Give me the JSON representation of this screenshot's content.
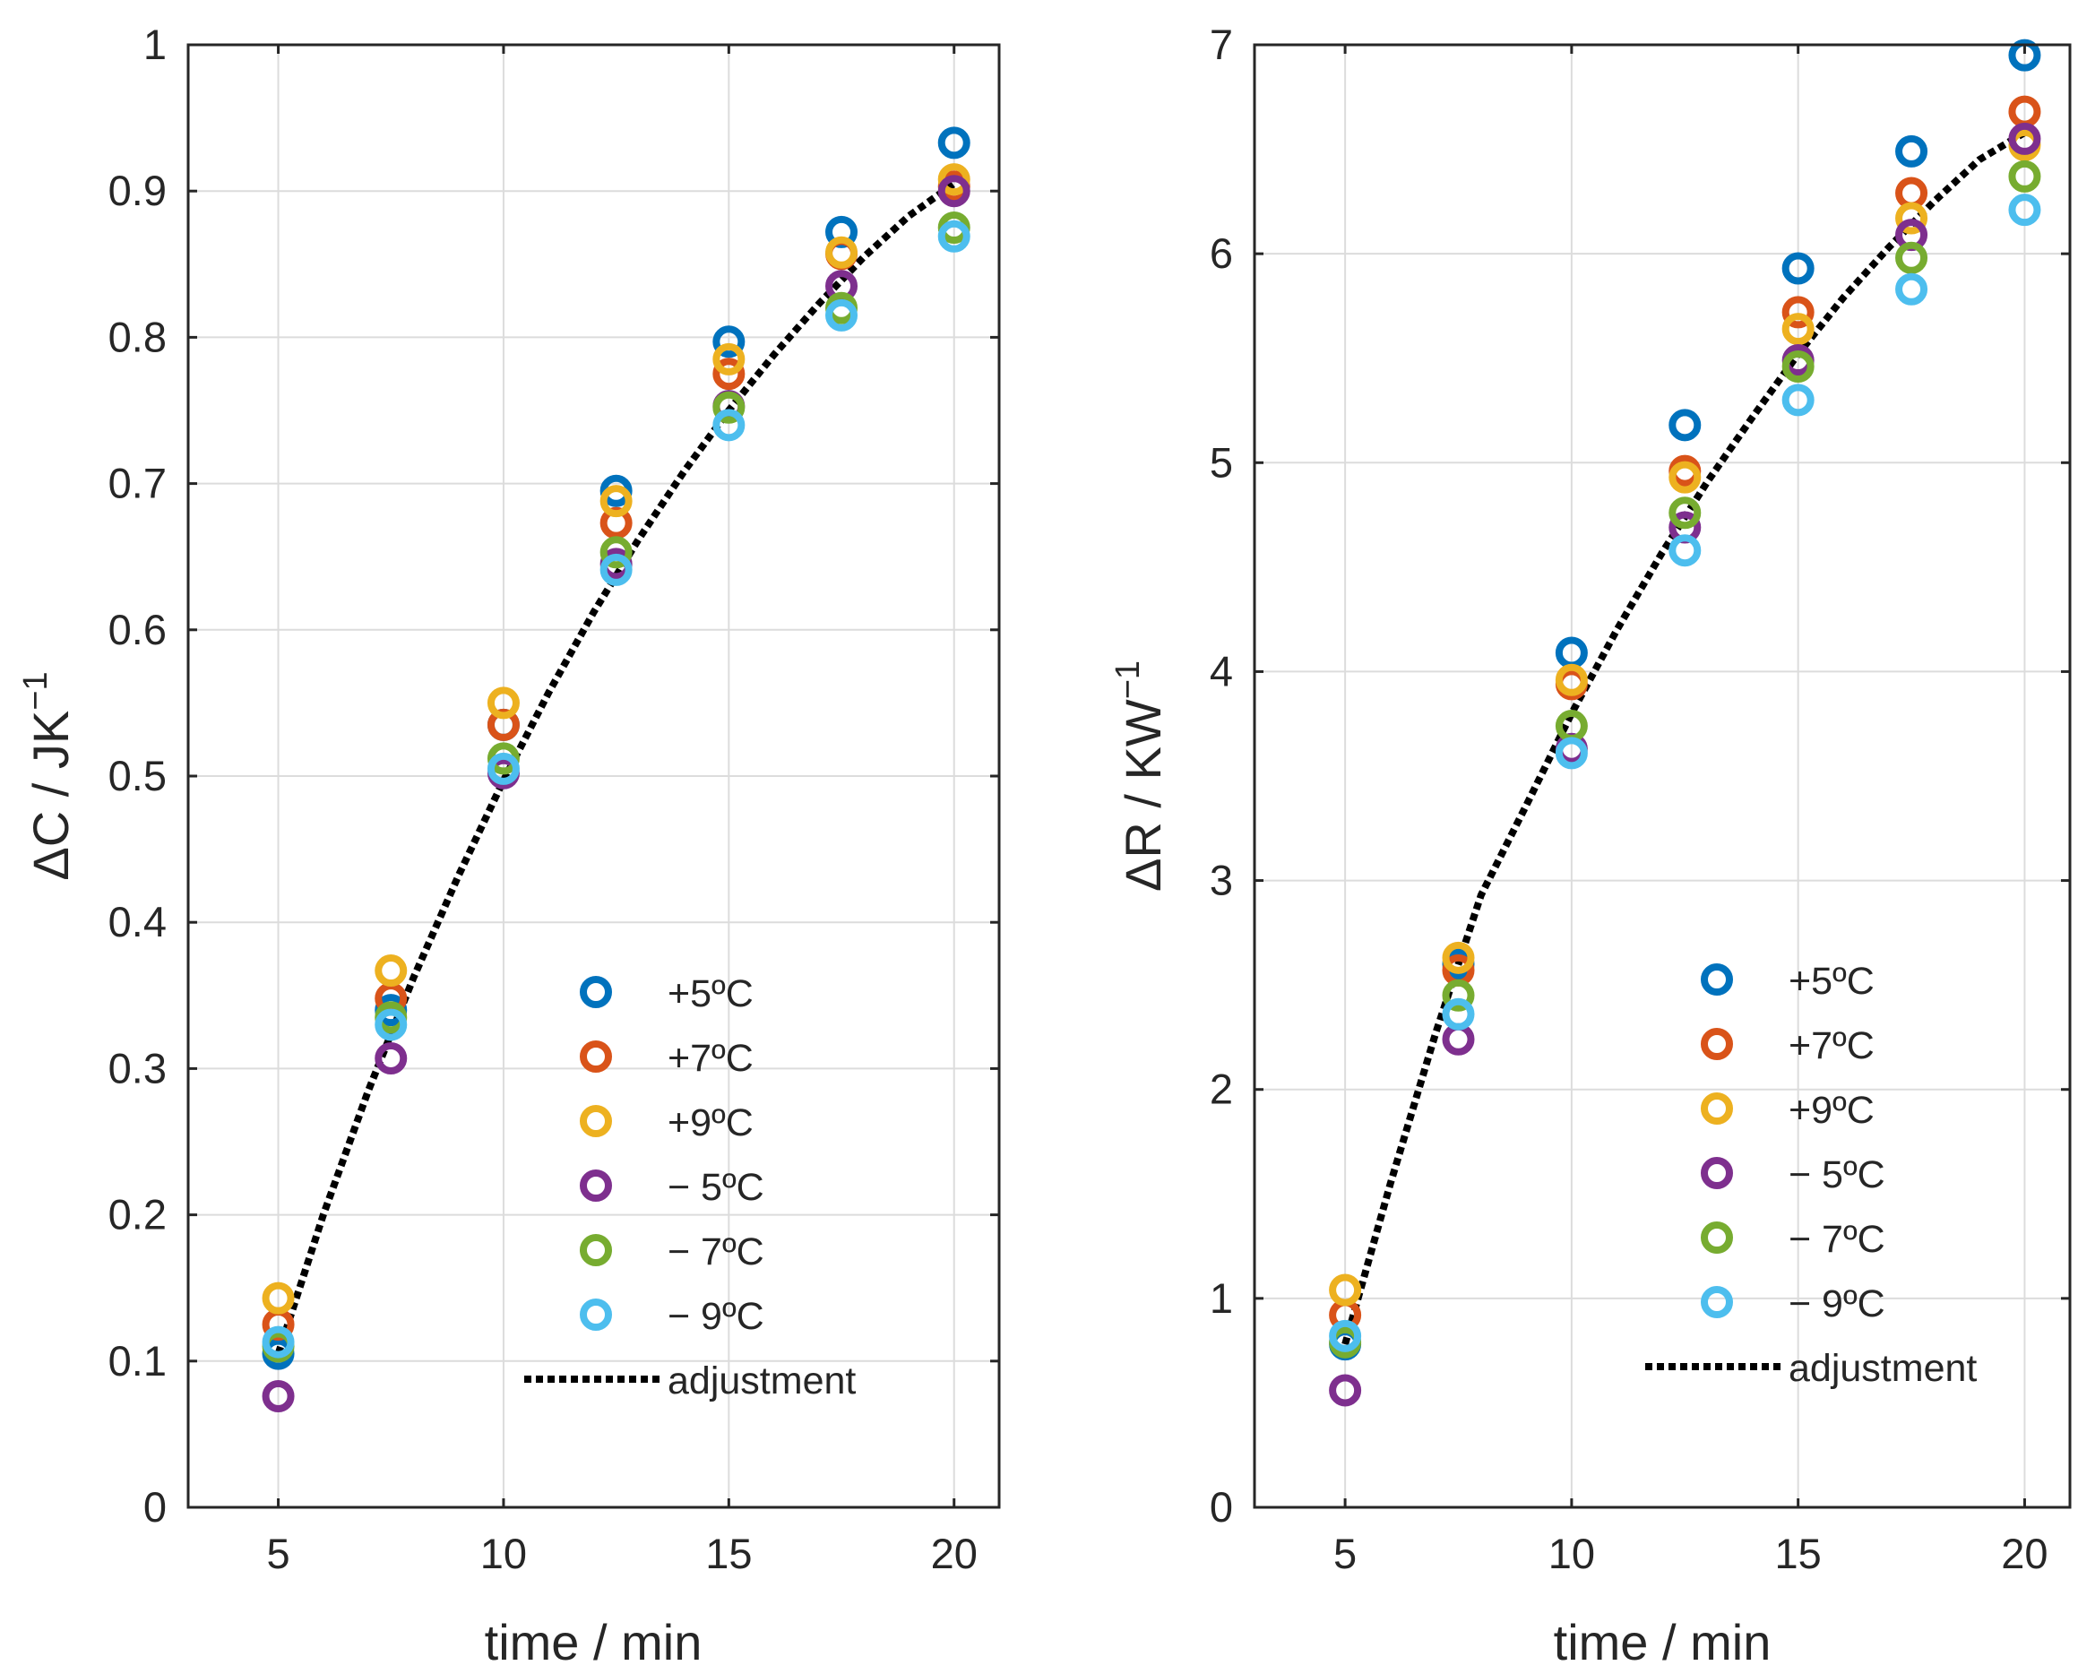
{
  "chart_data": [
    {
      "type": "scatter",
      "title": "",
      "xlabel": "time / min",
      "ylabel": {
        "delta": "Δ",
        "main": "C / JK",
        "sup": "−1"
      },
      "xlim": [
        3,
        21
      ],
      "ylim": [
        0,
        1
      ],
      "xticks": [
        5,
        10,
        15,
        20
      ],
      "xtick_labels": [
        "5",
        "10",
        "15",
        "20"
      ],
      "yticks": [
        0,
        0.1,
        0.2,
        0.3,
        0.4,
        0.5,
        0.6,
        0.7,
        0.8,
        0.9,
        1
      ],
      "ytick_labels": [
        "0",
        "0.1",
        "0.2",
        "0.3",
        "0.4",
        "0.5",
        "0.6",
        "0.7",
        "0.8",
        "0.9",
        "1"
      ],
      "grid": true,
      "legend_position": "bottom-right",
      "x": [
        5,
        7.5,
        10,
        12.5,
        15,
        17.5,
        20
      ],
      "series": [
        {
          "name": "+5ºC",
          "color": "#0072bd",
          "values": [
            0.105,
            0.34,
            0.535,
            0.695,
            0.797,
            0.872,
            0.933
          ]
        },
        {
          "name": "+7ºC",
          "color": "#d95319",
          "values": [
            0.125,
            0.348,
            0.535,
            0.673,
            0.775,
            0.857,
            0.903
          ]
        },
        {
          "name": "+9ºC",
          "color": "#edb120",
          "values": [
            0.143,
            0.367,
            0.55,
            0.688,
            0.785,
            0.858,
            0.908
          ]
        },
        {
          "name": "− 5ºC",
          "color": "#7e2f8e",
          "values": [
            0.076,
            0.307,
            0.502,
            0.645,
            0.753,
            0.835,
            0.9
          ]
        },
        {
          "name": "− 7ºC",
          "color": "#77ac30",
          "values": [
            0.11,
            0.335,
            0.512,
            0.653,
            0.752,
            0.82,
            0.875
          ]
        },
        {
          "name": "− 9ºC",
          "color": "#4dbeee",
          "values": [
            0.113,
            0.33,
            0.505,
            0.641,
            0.74,
            0.815,
            0.869
          ]
        }
      ],
      "fit": {
        "name": "adjustment",
        "x": [
          5,
          6,
          7,
          8,
          9,
          10,
          11,
          12,
          13,
          14,
          15,
          16,
          17,
          18,
          19,
          20
        ],
        "values": [
          0.105,
          0.2,
          0.285,
          0.362,
          0.432,
          0.497,
          0.557,
          0.612,
          0.662,
          0.708,
          0.75,
          0.788,
          0.823,
          0.855,
          0.883,
          0.905
        ]
      }
    },
    {
      "type": "scatter",
      "title": "",
      "xlabel": "time / min",
      "ylabel": {
        "delta": "Δ",
        "main": "R / KW",
        "sup": "−1"
      },
      "xlim": [
        3,
        21
      ],
      "ylim": [
        0,
        7
      ],
      "xticks": [
        5,
        10,
        15,
        20
      ],
      "xtick_labels": [
        "5",
        "10",
        "15",
        "20"
      ],
      "yticks": [
        0,
        1,
        2,
        3,
        4,
        5,
        6,
        7
      ],
      "ytick_labels": [
        "0",
        "1",
        "2",
        "3",
        "4",
        "5",
        "6",
        "7"
      ],
      "grid": true,
      "legend_position": "bottom-right",
      "x": [
        5,
        7.5,
        10,
        12.5,
        15,
        17.5,
        20
      ],
      "series": [
        {
          "name": "+5ºC",
          "color": "#0072bd",
          "values": [
            0.78,
            2.6,
            4.09,
            5.18,
            5.93,
            6.49,
            6.95
          ]
        },
        {
          "name": "+7ºC",
          "color": "#d95319",
          "values": [
            0.92,
            2.57,
            3.94,
            4.96,
            5.72,
            6.29,
            6.68
          ]
        },
        {
          "name": "+9ºC",
          "color": "#edb120",
          "values": [
            1.04,
            2.63,
            3.96,
            4.93,
            5.64,
            6.17,
            6.52
          ]
        },
        {
          "name": "− 5ºC",
          "color": "#7e2f8e",
          "values": [
            0.56,
            2.24,
            3.63,
            4.69,
            5.49,
            6.09,
            6.55
          ]
        },
        {
          "name": "− 7ºC",
          "color": "#77ac30",
          "values": [
            0.79,
            2.45,
            3.74,
            4.76,
            5.46,
            5.98,
            6.37
          ]
        },
        {
          "name": "− 9ºC",
          "color": "#4dbeee",
          "values": [
            0.82,
            2.36,
            3.61,
            4.58,
            5.3,
            5.83,
            6.21
          ]
        }
      ],
      "fit": {
        "name": "adjustment",
        "x": [
          5,
          6,
          7,
          8,
          9,
          10,
          11,
          12,
          13,
          14,
          15,
          16,
          17,
          18,
          19,
          20
        ],
        "values": [
          0.78,
          1.55,
          2.27,
          2.93,
          3.36,
          3.8,
          4.2,
          4.57,
          4.91,
          5.22,
          5.52,
          5.79,
          6.03,
          6.25,
          6.45,
          6.58
        ]
      }
    }
  ]
}
